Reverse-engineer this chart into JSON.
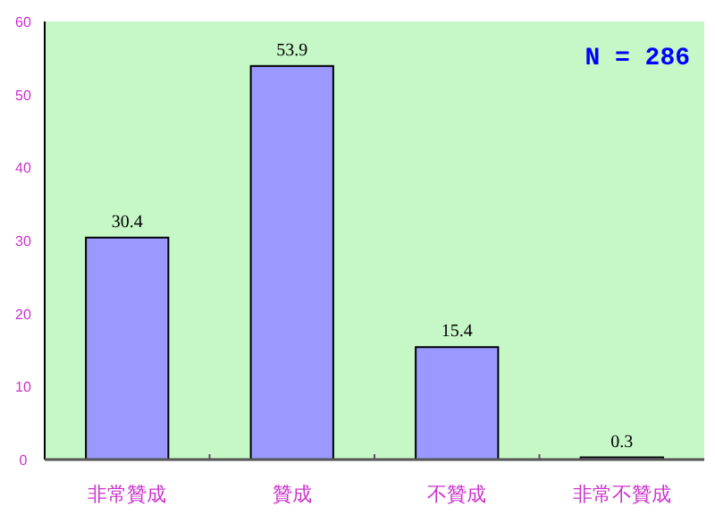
{
  "chart_data": {
    "type": "bar",
    "categories": [
      "非常贊成",
      "贊成",
      "不贊成",
      "非常不贊成"
    ],
    "values": [
      30.4,
      53.9,
      15.4,
      0.3
    ],
    "color": "#9999ff",
    "data_labels": true,
    "ylim": [
      0,
      60
    ],
    "yticks": [
      0,
      10,
      20,
      30,
      40,
      50,
      60
    ],
    "grid": false,
    "annotations": [
      "N = 286"
    ]
  }
}
